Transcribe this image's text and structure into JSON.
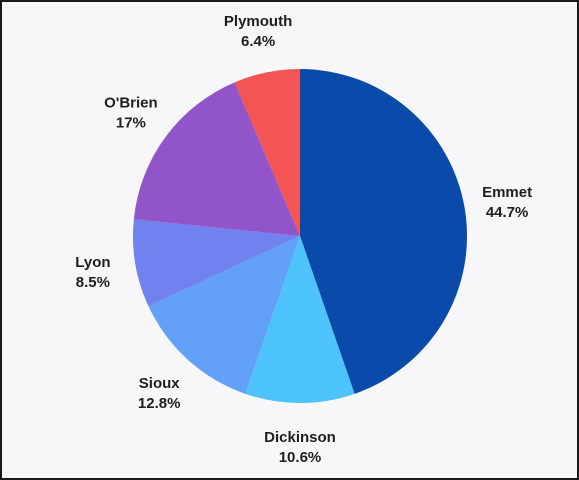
{
  "chart_data": {
    "type": "pie",
    "title": "",
    "start_angle_deg": 0,
    "direction": "clockwise",
    "slices": [
      {
        "label": "Emmet",
        "value": 44.7,
        "value_label": "44.7%",
        "color": "#0a4aab"
      },
      {
        "label": "Dickinson",
        "value": 10.6,
        "value_label": "10.6%",
        "color": "#4cc3fb"
      },
      {
        "label": "Sioux",
        "value": 12.8,
        "value_label": "12.8%",
        "color": "#62a1f7"
      },
      {
        "label": "Lyon",
        "value": 8.5,
        "value_label": "8.5%",
        "color": "#6f82ee"
      },
      {
        "label": "O'Brien",
        "value": 17,
        "value_label": "17%",
        "color": "#9154c9"
      },
      {
        "label": "Plymouth",
        "value": 6.4,
        "value_label": "6.4%",
        "color": "#f35454"
      }
    ]
  }
}
